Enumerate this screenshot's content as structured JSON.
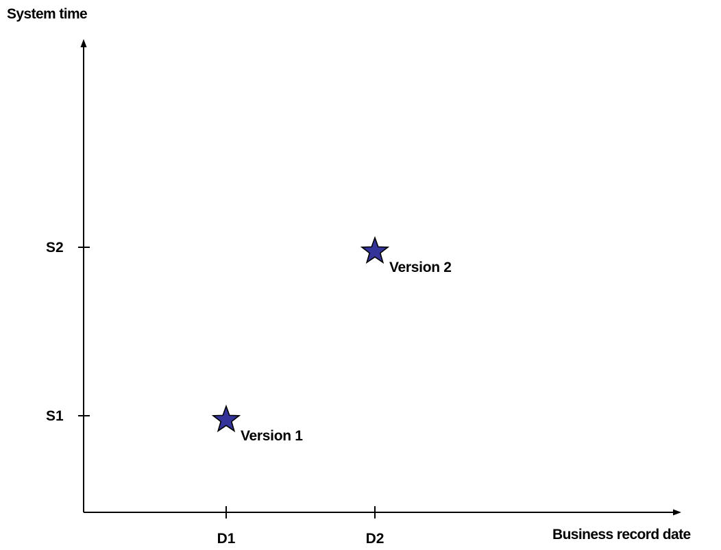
{
  "chart_data": {
    "type": "scatter",
    "title": "",
    "xlabel": "Business record date",
    "ylabel": "System time",
    "x_categories": [
      "D1",
      "D2"
    ],
    "y_categories": [
      "S1",
      "S2"
    ],
    "grid": false,
    "legend": "none",
    "series": [
      {
        "marker": "star-icon",
        "color": "#333399",
        "points": [
          {
            "x": "D1",
            "y": "S1",
            "label": "Version 1"
          },
          {
            "x": "D2",
            "y": "S2",
            "label": "Version 2"
          }
        ]
      }
    ]
  }
}
